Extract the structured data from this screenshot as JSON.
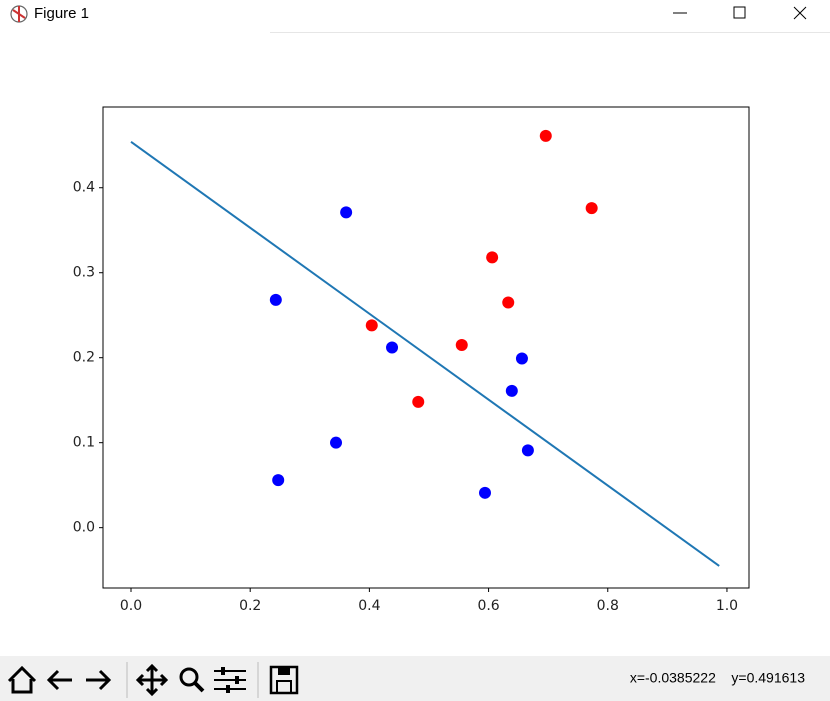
{
  "window_title": "Figure 1",
  "status": "x=-0.0385222    y=0.491613",
  "chart_data": {
    "type": "scatter",
    "xlim": [
      -0.047,
      1.037
    ],
    "ylim": [
      -0.071,
      0.495
    ],
    "xticks": [
      {
        "value": 0,
        "label": "0.0"
      },
      0.2,
      0.4,
      0.6,
      0.8,
      {
        "value": 1,
        "label": "1.0"
      }
    ],
    "yticks": [
      {
        "value": 0,
        "label": "0.0"
      },
      0.1,
      0.2,
      0.3,
      0.4
    ],
    "series": [
      {
        "type": "scatter",
        "color": "#ff0000",
        "x": [
          0.696,
          0.773,
          0.606,
          0.633,
          0.404,
          0.555,
          0.482
        ],
        "values": [
          0.461,
          0.376,
          0.318,
          0.265,
          0.238,
          0.215,
          0.148
        ]
      },
      {
        "type": "scatter",
        "color": "#0000ff",
        "x": [
          0.361,
          0.243,
          0.438,
          0.656,
          0.639,
          0.344,
          0.666,
          0.247,
          0.594
        ],
        "values": [
          0.371,
          0.268,
          0.212,
          0.199,
          0.161,
          0.1,
          0.091,
          0.056,
          0.041
        ]
      },
      {
        "type": "line",
        "color": "#1f77b4",
        "x": [
          0,
          0.987
        ],
        "values": [
          0.454,
          -0.045
        ]
      }
    ]
  }
}
